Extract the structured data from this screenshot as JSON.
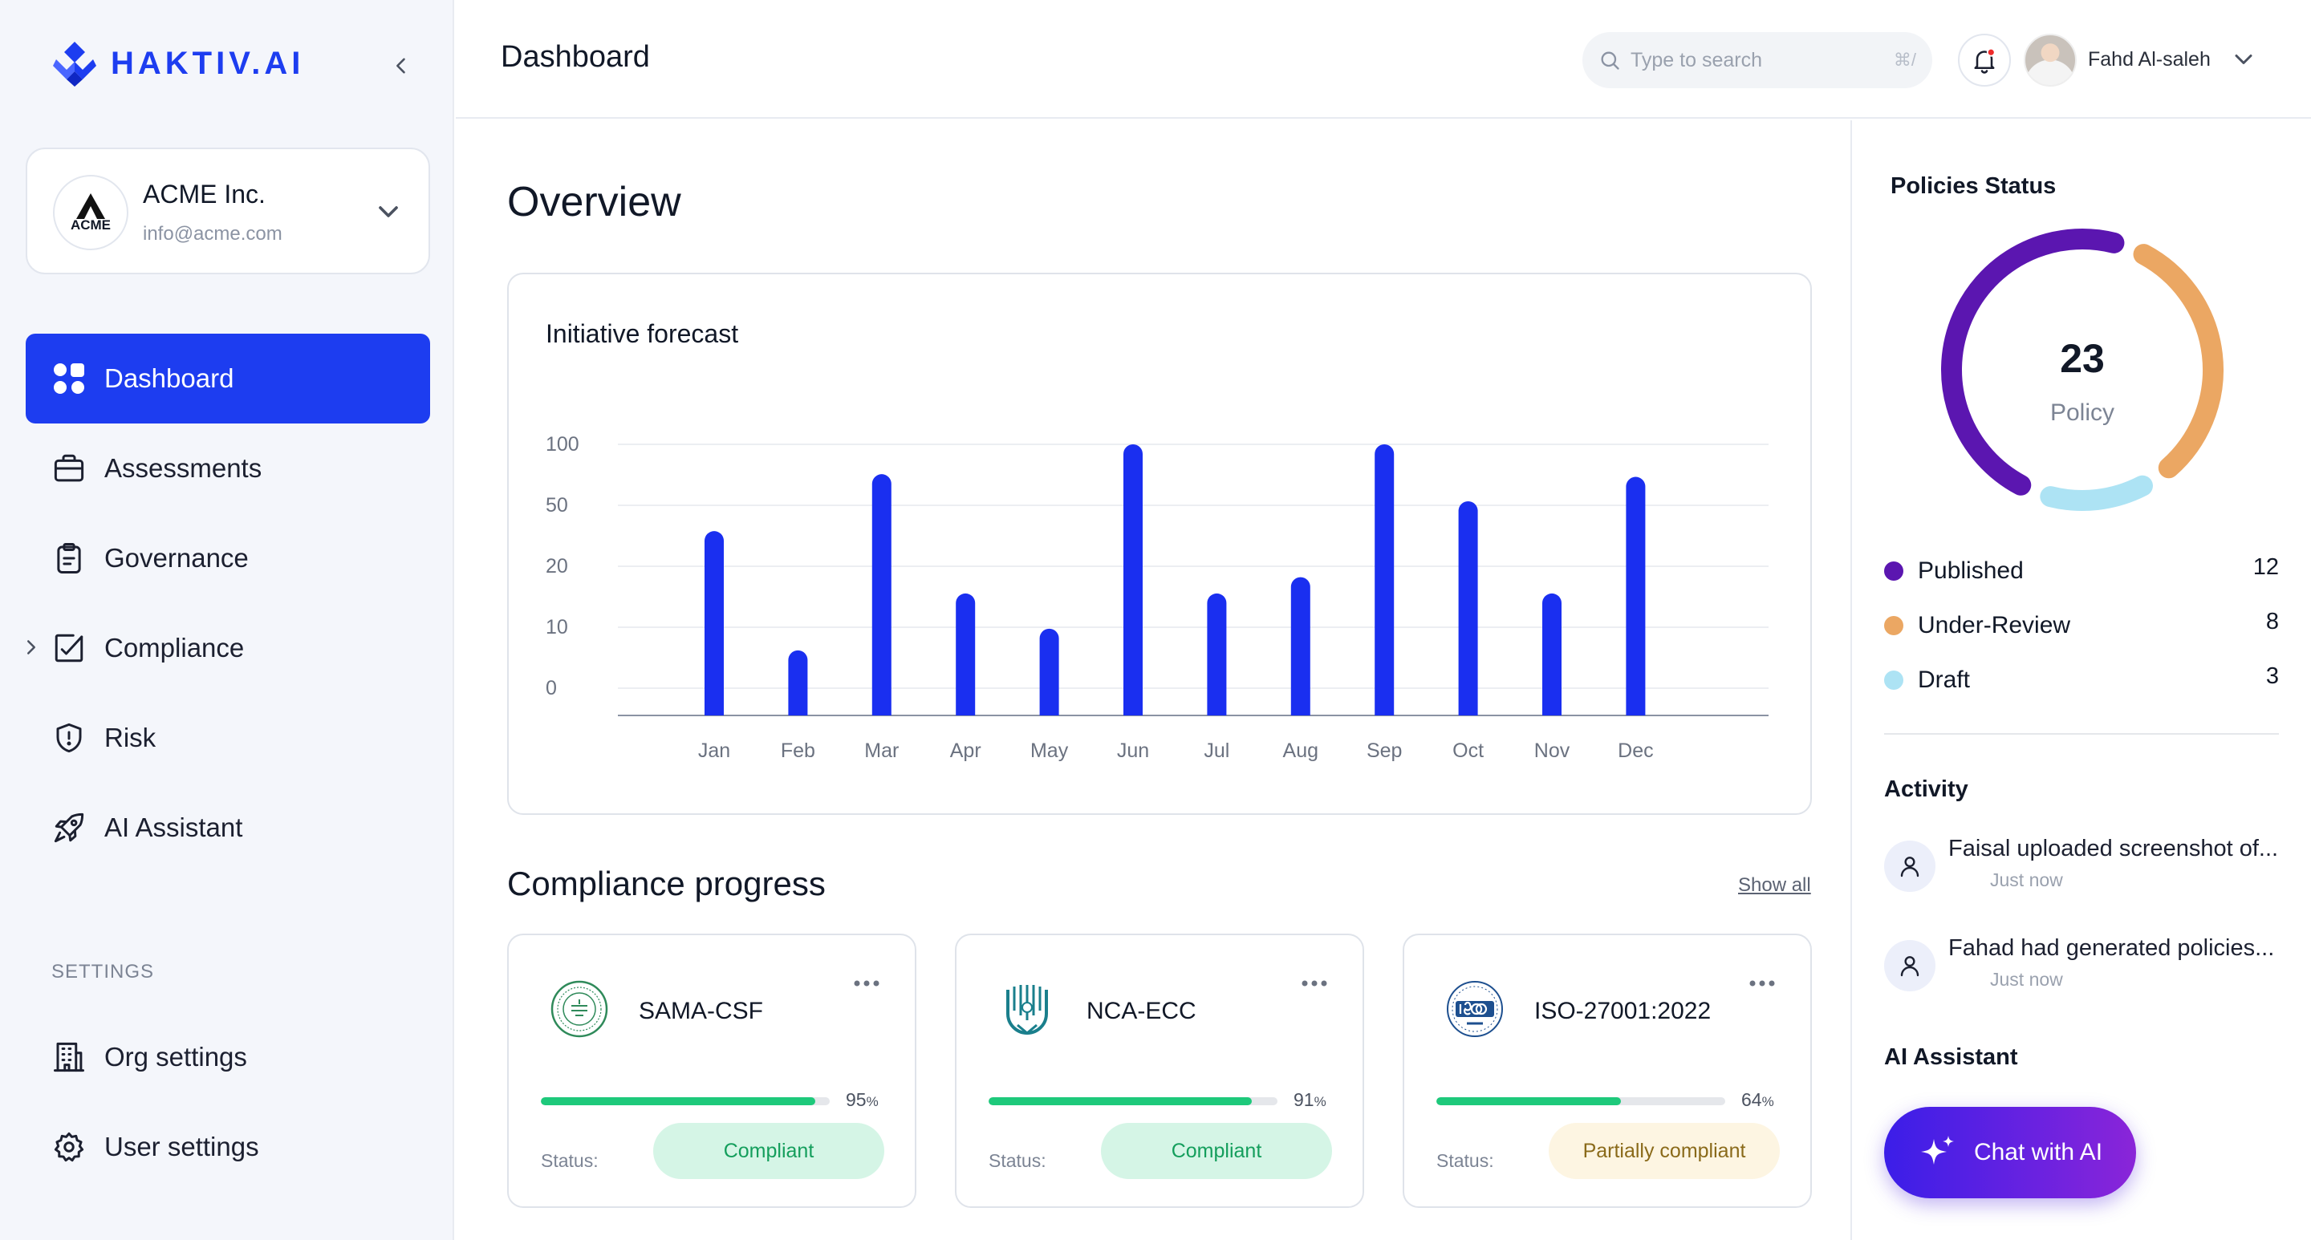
{
  "brand": {
    "name": "HAKTIV.AI",
    "accent": "#1d3df0"
  },
  "org": {
    "name": "ACME Inc.",
    "email": "info@acme.com",
    "logo_text": "ACME"
  },
  "nav": {
    "items": [
      {
        "label": "Dashboard",
        "icon": "dashboard-icon",
        "active": true
      },
      {
        "label": "Assessments",
        "icon": "briefcase-icon"
      },
      {
        "label": "Governance",
        "icon": "clipboard-icon"
      },
      {
        "label": "Compliance",
        "icon": "compliance-icon",
        "expandable": true
      },
      {
        "label": "Risk",
        "icon": "shield-icon"
      },
      {
        "label": "AI Assistant",
        "icon": "rocket-icon"
      }
    ],
    "settings_label": "SETTINGS",
    "settings_items": [
      {
        "label": "Org settings",
        "icon": "building-icon"
      },
      {
        "label": "User settings",
        "icon": "gear-icon"
      }
    ]
  },
  "header": {
    "title": "Dashboard",
    "search_placeholder": "Type to search",
    "search_shortcut": "⌘/",
    "user_name": "Fahd Al-saleh"
  },
  "main": {
    "overview_title": "Overview",
    "chart_title": "Initiative forecast",
    "compliance_title": "Compliance progress",
    "show_all": "Show all",
    "status_label": "Status:",
    "frameworks": [
      {
        "name": "SAMA-CSF",
        "progress": 95,
        "status": "Compliant",
        "status_type": "ok",
        "logo": "sama-logo-icon"
      },
      {
        "name": "NCA-ECC",
        "progress": 91,
        "status": "Compliant",
        "status_type": "ok",
        "logo": "nca-logo-icon"
      },
      {
        "name": "ISO-27001:2022",
        "progress": 64,
        "status": "Partially compliant",
        "status_type": "partial",
        "logo": "iso-logo-icon"
      }
    ]
  },
  "chart_data": {
    "type": "bar",
    "title": "Initiative forecast",
    "categories": [
      "Jan",
      "Feb",
      "Mar",
      "Apr",
      "May",
      "Jun",
      "Jul",
      "Aug",
      "Sep",
      "Oct",
      "Nov",
      "Dec"
    ],
    "y_ticks": [
      "100",
      "50",
      "20",
      "10",
      "0"
    ],
    "values": [
      68,
      24,
      89,
      45,
      32,
      100,
      45,
      51,
      100,
      79,
      45,
      88
    ],
    "ylim": [
      0,
      100
    ],
    "bar_color": "#1a2ff0",
    "grid": true
  },
  "policies": {
    "title": "Policies Status",
    "total": "23",
    "total_label": "Policy",
    "items": [
      {
        "label": "Published",
        "value": 12,
        "color": "#5b16b0"
      },
      {
        "label": "Under-Review",
        "value": 8,
        "color": "#eba763"
      },
      {
        "label": "Draft",
        "value": 3,
        "color": "#ade3f4"
      }
    ]
  },
  "activity": {
    "title": "Activity",
    "items": [
      {
        "text": "Faisal uploaded screenshot of...",
        "time": "Just now"
      },
      {
        "text": "Fahad had generated policies...",
        "time": "Just now"
      }
    ]
  },
  "assistant": {
    "title": "AI Assistant",
    "button": "Chat with AI"
  }
}
